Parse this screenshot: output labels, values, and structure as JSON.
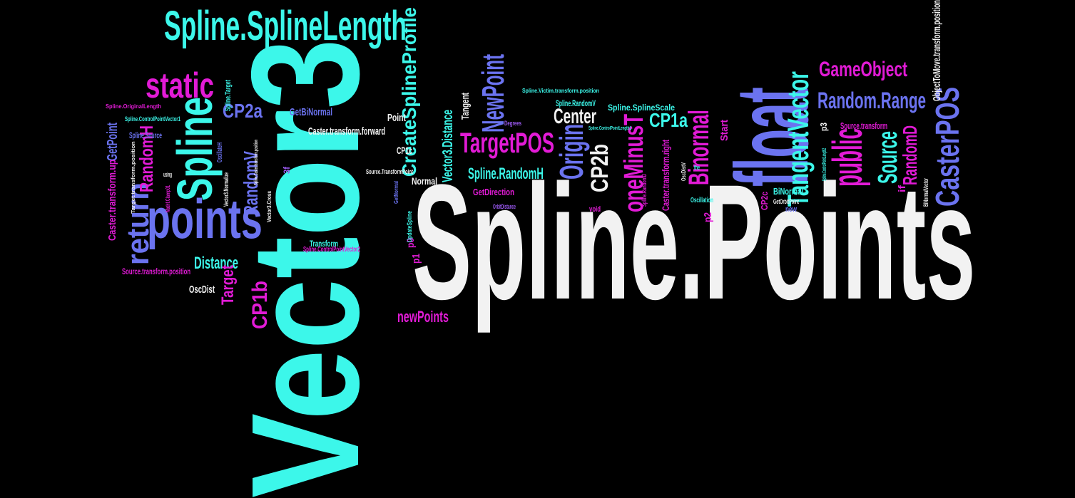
{
  "colors": {
    "background": "#000000",
    "white": "#f2f2f2",
    "cyan": "#3cf7ea",
    "magenta": "#e21bd6",
    "blue": "#6b73f0",
    "purple": "#9b59f2"
  },
  "words": [
    {
      "id": "spline-points",
      "text": "Spline.Points",
      "color": "white"
    },
    {
      "id": "vector3",
      "text": "Vector3",
      "color": "cyan"
    },
    {
      "id": "spline-spline-length",
      "text": "Spline.SplineLength",
      "color": "cyan"
    },
    {
      "id": "float",
      "text": "float",
      "color": "blue"
    },
    {
      "id": "points",
      "text": "points",
      "color": "blue"
    },
    {
      "id": "spline",
      "text": "Spline",
      "color": "cyan"
    },
    {
      "id": "static",
      "text": "static",
      "color": "magenta"
    },
    {
      "id": "public",
      "text": "public",
      "color": "magenta"
    },
    {
      "id": "create-spline-profile",
      "text": "CreateSplineProfile",
      "color": "cyan"
    },
    {
      "id": "new-point",
      "text": "NewPoint",
      "color": "blue"
    },
    {
      "id": "target-pos",
      "text": "TargetPOS",
      "color": "magenta"
    },
    {
      "id": "origin",
      "text": "Origin",
      "color": "blue"
    },
    {
      "id": "caster-pos",
      "text": "CasterPOS",
      "color": "blue"
    },
    {
      "id": "tangent-vector",
      "text": "TangentVector",
      "color": "cyan"
    },
    {
      "id": "game-object",
      "text": "GameObject",
      "color": "magenta"
    },
    {
      "id": "random-range",
      "text": "Random.Range",
      "color": "blue"
    },
    {
      "id": "one-minus-t",
      "text": "oneMinusT",
      "color": "magenta"
    },
    {
      "id": "binormal",
      "text": "Binormal",
      "color": "magenta"
    },
    {
      "id": "return",
      "text": "return",
      "color": "blue"
    },
    {
      "id": "center",
      "text": "Center",
      "color": "white"
    },
    {
      "id": "cp2a",
      "text": "CP2a",
      "color": "blue"
    },
    {
      "id": "cp1a",
      "text": "CP1a",
      "color": "cyan"
    },
    {
      "id": "cp2b",
      "text": "CP2b",
      "color": "white"
    },
    {
      "id": "cp1b",
      "text": "CP1b",
      "color": "magenta"
    },
    {
      "id": "source",
      "text": "Source",
      "color": "cyan"
    },
    {
      "id": "random-d",
      "text": "RandomD",
      "color": "magenta"
    },
    {
      "id": "random-v",
      "text": "RandomV",
      "color": "blue"
    },
    {
      "id": "random-h",
      "text": "RandomH",
      "color": "magenta"
    },
    {
      "id": "spline-random-h",
      "text": "Spline.RandomH",
      "color": "cyan"
    },
    {
      "id": "new-points",
      "text": "newPoints",
      "color": "magenta"
    },
    {
      "id": "distance",
      "text": "Distance",
      "color": "cyan"
    },
    {
      "id": "target",
      "text": "Target",
      "color": "magenta"
    },
    {
      "id": "get-point",
      "text": "GetPoint",
      "color": "blue"
    },
    {
      "id": "vector3-distance",
      "text": "Vector3.Distance",
      "color": "cyan"
    },
    {
      "id": "caster-transform-forward",
      "text": "Caster.transform.forward",
      "color": "white"
    },
    {
      "id": "caster-transform-up",
      "text": "Caster.transform.up",
      "color": "magenta"
    },
    {
      "id": "caster-transform-right",
      "text": "Caster.transform.right",
      "color": "magenta"
    },
    {
      "id": "object-to-move-transform-position",
      "text": "ObjectToMove.transform.position",
      "color": "white"
    },
    {
      "id": "get-binormal",
      "text": "GetBiNormal",
      "color": "blue"
    },
    {
      "id": "source-transform-position",
      "text": "Source.transform.position",
      "color": "magenta"
    },
    {
      "id": "source-transform",
      "text": "Source.transform",
      "color": "magenta"
    },
    {
      "id": "osc-dist",
      "text": "OscDist",
      "color": "white"
    },
    {
      "id": "point",
      "text": "Point",
      "color": "white"
    },
    {
      "id": "tangent",
      "text": "Tangent",
      "color": "white"
    },
    {
      "id": "get-direction",
      "text": "GetDirection",
      "color": "magenta"
    },
    {
      "id": "normal",
      "text": "Normal",
      "color": "white"
    },
    {
      "id": "bi-normal",
      "text": "BiNormal",
      "color": "cyan"
    },
    {
      "id": "start",
      "text": "Start",
      "color": "magenta"
    },
    {
      "id": "if",
      "text": "if",
      "color": "magenta"
    },
    {
      "id": "p0",
      "text": "p0",
      "color": "magenta"
    },
    {
      "id": "p1",
      "text": "p1",
      "color": "magenta"
    },
    {
      "id": "p2",
      "text": "p2",
      "color": "magenta"
    },
    {
      "id": "p3",
      "text": "p3",
      "color": "white"
    },
    {
      "id": "cp1c",
      "text": "CP1c",
      "color": "white"
    },
    {
      "id": "cp2c",
      "text": "CP2c",
      "color": "magenta"
    },
    {
      "id": "transform",
      "text": "Transform",
      "color": "cyan"
    },
    {
      "id": "spline-control-point-vector2",
      "text": "Spline.ControlPointVector2",
      "color": "magenta"
    },
    {
      "id": "spline-control-point-vector1",
      "text": "Spline.ControlPointVector1",
      "color": "cyan"
    },
    {
      "id": "spline-source",
      "text": "Spline.Source",
      "color": "blue"
    },
    {
      "id": "spline-target",
      "text": "Spline.Target",
      "color": "cyan"
    },
    {
      "id": "spline-random-v",
      "text": "Spline.RandomV",
      "color": "cyan"
    },
    {
      "id": "spline-spline-scale",
      "text": "Spline.SplineScale",
      "color": "cyan"
    },
    {
      "id": "spline-victim-transform-position",
      "text": "Spline.Victim.transform.position",
      "color": "cyan"
    },
    {
      "id": "spline-original-length",
      "text": "Spline.OriginalLength",
      "color": "magenta"
    },
    {
      "id": "source-transform-point",
      "text": "Source.TransformPoint",
      "color": "white"
    },
    {
      "id": "degrees",
      "text": "Degrees",
      "color": "purple"
    },
    {
      "id": "orbit-distance",
      "text": "OrbitDistance",
      "color": "purple"
    },
    {
      "id": "oscillation",
      "text": "Oscillation",
      "color": "cyan"
    },
    {
      "id": "get-orbit-point",
      "text": "GetOrbitPoint",
      "color": "white"
    },
    {
      "id": "void",
      "text": "void",
      "color": "magenta"
    },
    {
      "id": "new",
      "text": "new",
      "color": "blue"
    },
    {
      "id": "the",
      "text": "the",
      "color": "cyan"
    },
    {
      "id": "using",
      "text": "using",
      "color": "white"
    },
    {
      "id": "oscillate-h",
      "text": "OscillateH",
      "color": "blue"
    },
    {
      "id": "vector3-normalize",
      "text": "Vector3.Normalize",
      "color": "white"
    },
    {
      "id": "vector3-cross",
      "text": "Vector3.Cross",
      "color": "white"
    },
    {
      "id": "target-transform-position",
      "text": "Target.transform.position",
      "color": "white"
    },
    {
      "id": "spline-caster-transform-position",
      "text": "Spline.Caster.transform.position",
      "color": "white"
    },
    {
      "id": "mathf-clamp01",
      "text": "Mathf.Clamp01",
      "color": "magenta"
    },
    {
      "id": "spline-random-d",
      "text": "Spline.RandomD",
      "color": "magenta"
    },
    {
      "id": "spline-control-point-length2",
      "text": "Spline.ControlPointLength2",
      "color": "cyan"
    },
    {
      "id": "spline-control-point-length1",
      "text": "Spline.ControlPointLength1",
      "color": "cyan"
    },
    {
      "id": "bi-normal-vector",
      "text": "BiNormalVector",
      "color": "white"
    },
    {
      "id": "update-spline",
      "text": "UpdateSpline",
      "color": "cyan"
    },
    {
      "id": "osc-dist-v",
      "text": "OscDistV",
      "color": "white"
    },
    {
      "id": "get-normal",
      "text": "GetNormal",
      "color": "blue"
    },
    {
      "id": "three-f",
      "text": "3f",
      "color": "purple"
    }
  ]
}
